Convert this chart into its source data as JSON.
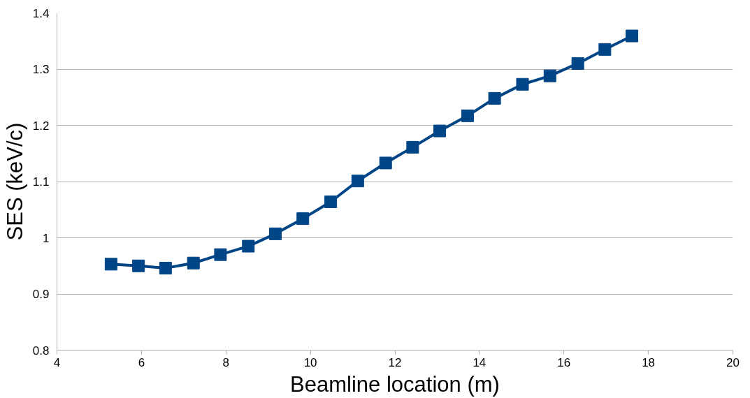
{
  "chart_data": {
    "type": "line",
    "xlabel": "Beamline location (m)",
    "ylabel": "SES (keV/c)",
    "x": [
      5.28,
      5.93,
      6.57,
      7.23,
      7.87,
      8.53,
      9.17,
      9.82,
      10.48,
      11.12,
      11.78,
      12.42,
      13.06,
      13.72,
      14.36,
      15.02,
      15.67,
      16.33,
      16.97,
      17.61
    ],
    "series": [
      {
        "color": "#004586",
        "values": [
          0.953,
          0.95,
          0.946,
          0.955,
          0.97,
          0.985,
          1.007,
          1.034,
          1.064,
          1.101,
          1.133,
          1.161,
          1.19,
          1.217,
          1.248,
          1.273,
          1.288,
          1.31,
          1.335,
          1.359
        ]
      }
    ],
    "xlim": [
      4,
      20
    ],
    "xticks": [
      4,
      6,
      8,
      10,
      12,
      14,
      16,
      18,
      20
    ],
    "ylim": [
      0.8,
      1.4
    ],
    "yticks": [
      0.8,
      0.9,
      1,
      1.1,
      1.2,
      1.3,
      1.4
    ],
    "grid": "y",
    "marker": "square",
    "line_style": "solid"
  }
}
